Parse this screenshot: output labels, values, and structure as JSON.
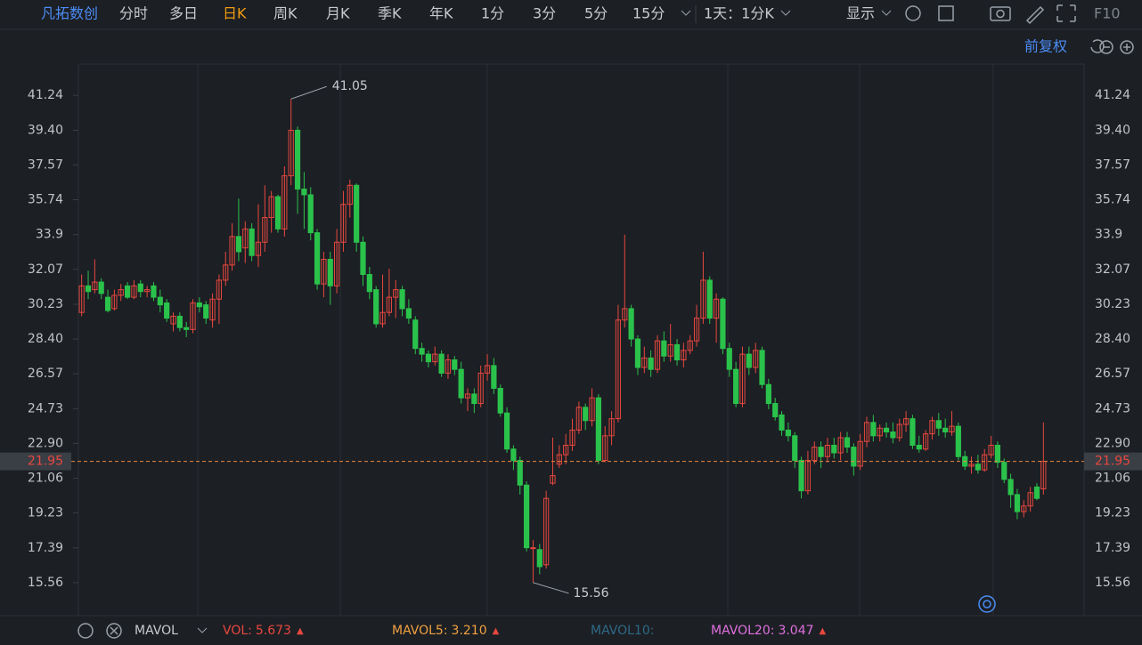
{
  "toolbar": {
    "stock": "凡拓数创",
    "tabs": [
      "分时",
      "多日",
      "日K",
      "周K",
      "月K",
      "季K",
      "年K",
      "1分",
      "3分",
      "5分",
      "15分"
    ],
    "active": 2,
    "period": "1天：1分K",
    "display": "显示",
    "f10": "F10",
    "adjust": "前复权"
  },
  "chart_data": {
    "type": "candlestick",
    "up_color": "#e8483f",
    "down_color": "#2bc24c",
    "ylim": [
      13.82,
      42.89
    ],
    "yticks": [
      41.24,
      {
        "value": 39.4,
        "label": "39.40"
      },
      37.57,
      35.74,
      33.9,
      32.07,
      30.23,
      {
        "value": 28.4,
        "label": "28.40"
      },
      26.57,
      24.73,
      {
        "value": 22.9,
        "label": "22.90"
      },
      21.06,
      19.23,
      17.39,
      15.56
    ],
    "open": [
      29.8,
      31.2,
      31.0,
      31.4,
      30.6,
      30.0,
      30.7,
      31.2,
      30.6,
      31.3,
      30.9,
      31.2,
      30.6,
      30.3,
      29.2,
      29.6,
      29.0,
      28.9,
      30.3,
      30.2,
      29.4,
      30.5,
      31.5,
      32.3,
      33.8,
      33.2,
      34.2,
      32.8,
      33.5,
      34.8,
      35.9,
      34.2,
      37.0,
      39.4,
      36.3,
      36.0,
      34.0,
      31.3,
      32.6,
      31.2,
      33.5,
      35.5,
      36.5,
      33.5,
      31.8,
      31.0,
      29.2,
      29.8,
      30.6,
      31.0,
      30.0,
      29.4,
      27.9,
      27.6,
      27.2,
      27.6,
      26.6,
      27.3,
      26.8,
      25.3,
      25.5,
      25.0,
      26.6,
      27.0,
      25.8,
      24.5,
      22.6,
      22.0,
      20.7,
      17.4,
      17.3,
      16.5,
      20.8,
      21.8,
      22.3,
      22.8,
      23.6,
      24.8,
      24.1,
      25.3,
      22.0,
      23.3,
      24.2,
      29.4,
      30.0,
      28.4,
      26.9,
      27.4,
      26.8,
      28.3,
      27.5,
      28.1,
      27.3,
      27.8,
      28.3,
      29.5,
      31.5,
      29.5,
      30.5,
      27.9,
      26.8,
      25.0,
      27.6,
      26.9,
      27.8,
      26.0,
      25.0,
      24.4,
      23.6,
      23.3,
      22.0,
      20.4,
      22.0,
      22.7,
      22.2,
      22.8,
      22.4,
      23.2,
      22.7,
      21.7,
      23.0,
      24.0,
      23.3,
      23.7,
      23.5,
      23.2,
      23.9,
      24.2,
      22.8,
      22.6,
      23.4,
      24.1,
      23.7,
      23.5,
      23.8,
      22.2,
      21.7,
      21.8,
      21.5,
      22.3,
      22.8,
      21.9,
      21.0,
      20.2,
      19.3,
      19.6,
      20.6,
      20.5
    ],
    "high": [
      31.8,
      32.0,
      32.6,
      31.6,
      31.0,
      31.0,
      31.3,
      31.4,
      31.5,
      31.5,
      31.2,
      31.4,
      31.0,
      30.5,
      29.8,
      29.8,
      29.3,
      30.5,
      30.6,
      30.4,
      30.8,
      31.8,
      33.0,
      34.5,
      35.8,
      34.6,
      34.5,
      35.5,
      36.5,
      36.2,
      36.0,
      37.5,
      41.05,
      39.6,
      37.2,
      36.4,
      34.2,
      33.0,
      33.0,
      34.2,
      36.2,
      36.8,
      36.6,
      33.8,
      32.2,
      31.2,
      31.8,
      32.1,
      31.5,
      31.2,
      30.5,
      29.6,
      28.2,
      27.8,
      28.0,
      27.8,
      27.6,
      27.5,
      27.2,
      25.8,
      25.8,
      27.0,
      27.6,
      27.4,
      26.0,
      24.8,
      22.8,
      22.2,
      20.9,
      17.8,
      17.6,
      20.4,
      23.2,
      22.8,
      23.4,
      24.2,
      25.1,
      25.0,
      25.8,
      25.5,
      23.8,
      24.6,
      30.2,
      33.9,
      30.2,
      28.6,
      28.0,
      27.8,
      28.6,
      28.8,
      29.2,
      28.4,
      28.2,
      28.6,
      30.2,
      33.0,
      31.7,
      30.8,
      30.6,
      28.2,
      27.2,
      28.0,
      28.0,
      28.2,
      28.0,
      26.3,
      25.3,
      24.6,
      24.0,
      23.5,
      22.2,
      22.5,
      23.0,
      23.0,
      23.2,
      23.2,
      23.5,
      23.5,
      22.9,
      23.4,
      24.3,
      24.4,
      23.9,
      24.0,
      24.0,
      24.2,
      24.6,
      24.4,
      23.3,
      23.6,
      24.3,
      24.5,
      24.2,
      24.6,
      24.0,
      22.5,
      22.2,
      22.3,
      22.6,
      23.3,
      23.0,
      22.1,
      21.3,
      20.5,
      19.9,
      20.6,
      20.8,
      24.0
    ],
    "low": [
      29.6,
      30.5,
      30.8,
      30.5,
      29.8,
      29.9,
      30.4,
      30.5,
      30.5,
      30.6,
      30.6,
      30.4,
      29.8,
      29.3,
      28.8,
      28.8,
      28.5,
      28.7,
      29.8,
      29.2,
      29.0,
      29.2,
      31.2,
      32.0,
      32.5,
      32.4,
      32.5,
      32.2,
      33.0,
      34.0,
      34.0,
      33.8,
      36.5,
      35.0,
      34.2,
      33.6,
      31.0,
      30.6,
      30.2,
      30.8,
      33.0,
      34.8,
      33.0,
      31.2,
      30.5,
      29.0,
      29.0,
      29.6,
      29.5,
      29.6,
      29.2,
      27.6,
      27.2,
      26.9,
      27.0,
      26.4,
      26.3,
      26.5,
      25.0,
      24.6,
      24.5,
      24.8,
      26.2,
      25.5,
      24.3,
      22.4,
      21.5,
      20.2,
      17.2,
      15.56,
      16.0,
      16.3,
      20.7,
      21.6,
      21.8,
      22.5,
      23.4,
      23.6,
      23.8,
      21.8,
      21.9,
      22.8,
      24.0,
      29.0,
      28.0,
      26.5,
      26.6,
      26.4,
      26.6,
      27.2,
      27.2,
      27.0,
      26.9,
      27.6,
      28.0,
      29.2,
      29.2,
      28.2,
      27.6,
      26.4,
      24.8,
      24.8,
      26.5,
      26.6,
      25.8,
      24.7,
      24.1,
      23.3,
      23.0,
      21.6,
      20.0,
      20.2,
      21.8,
      21.6,
      21.9,
      22.1,
      22.0,
      22.4,
      21.2,
      21.5,
      22.7,
      23.0,
      23.0,
      23.2,
      22.9,
      23.0,
      23.5,
      22.6,
      22.4,
      22.5,
      23.1,
      23.3,
      23.2,
      23.3,
      22.0,
      21.5,
      21.3,
      21.3,
      21.4,
      22.1,
      21.6,
      20.8,
      19.5,
      18.9,
      19.0,
      19.3,
      19.9,
      20.2
    ],
    "close": [
      31.2,
      30.9,
      31.4,
      30.8,
      29.9,
      30.7,
      31.0,
      30.6,
      31.2,
      30.9,
      31.0,
      30.6,
      30.2,
      29.5,
      29.6,
      29.0,
      28.9,
      30.3,
      30.1,
      29.5,
      30.5,
      31.5,
      32.3,
      33.8,
      33.0,
      34.2,
      32.8,
      33.5,
      34.8,
      35.9,
      34.2,
      37.0,
      39.4,
      36.3,
      36.0,
      34.0,
      31.3,
      32.6,
      31.2,
      33.5,
      35.5,
      36.5,
      33.5,
      31.8,
      30.9,
      29.2,
      29.8,
      30.6,
      31.0,
      30.0,
      29.5,
      27.9,
      27.6,
      27.2,
      27.6,
      26.6,
      27.3,
      26.8,
      25.3,
      25.5,
      25.0,
      26.6,
      27.0,
      25.8,
      24.5,
      22.6,
      22.0,
      20.7,
      17.4,
      17.4,
      16.4,
      20.0,
      21.2,
      22.3,
      22.8,
      23.6,
      24.8,
      24.1,
      25.3,
      22.0,
      23.3,
      24.2,
      29.4,
      30.0,
      28.4,
      26.9,
      27.4,
      26.8,
      28.3,
      27.5,
      28.1,
      27.3,
      27.8,
      28.3,
      29.5,
      31.5,
      29.5,
      30.5,
      27.9,
      26.8,
      25.0,
      27.6,
      26.9,
      27.8,
      26.0,
      25.0,
      24.3,
      23.6,
      23.3,
      22.0,
      20.4,
      22.0,
      22.7,
      22.2,
      22.8,
      22.4,
      23.2,
      22.7,
      21.7,
      23.0,
      24.0,
      23.3,
      23.7,
      23.5,
      23.2,
      23.9,
      24.2,
      22.8,
      22.6,
      23.4,
      24.1,
      23.7,
      23.5,
      23.8,
      22.2,
      21.7,
      21.8,
      21.5,
      22.3,
      22.8,
      21.9,
      21.0,
      20.2,
      19.3,
      19.6,
      20.3,
      20.0,
      21.95
    ]
  },
  "indicators": {
    "selector": "MAVOL",
    "items": [
      {
        "label": "VOL:",
        "value": "5.673",
        "color": "#e8483f",
        "arrow": "▲"
      },
      {
        "label": "MAVOL5:",
        "value": "3.210",
        "color": "#f0a040",
        "arrow": "▲"
      },
      {
        "label": "MAVOL10:",
        "color": "#2f6a86"
      },
      {
        "label": "MAVOL20:",
        "value": "3.047",
        "color": "#e070e0",
        "arrow": "▲"
      }
    ]
  }
}
